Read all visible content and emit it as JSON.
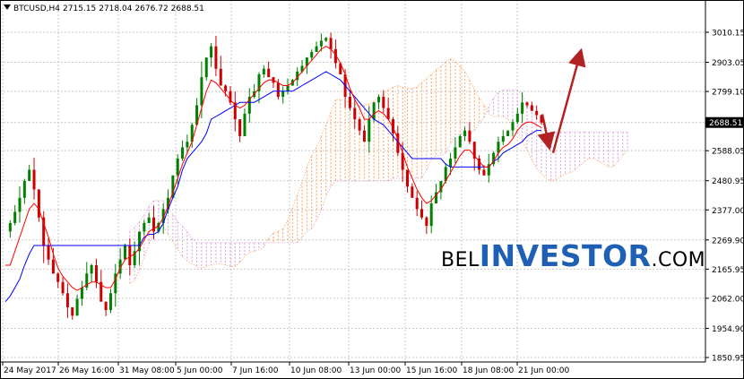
{
  "header": {
    "symbol": "BTCUSD,H4",
    "open": "2715.15",
    "high": "2718.04",
    "low": "2676.72",
    "close": "2688.51"
  },
  "watermark": {
    "part1": "BEL",
    "part2": "INVESTOR",
    "part3": ".COM"
  },
  "colors": {
    "bull": "#008000",
    "bear": "#cc0000",
    "tenkan": "#ff0000",
    "kijun": "#0000ff",
    "cloud_a": "#ffa060",
    "cloud_b": "#d8a0d8",
    "arrow": "#b22222",
    "watermark_blue": "#1f5fb4"
  },
  "chart_data": {
    "type": "candlestick",
    "title": "",
    "y_axis_ticks": [
      "3010.15",
      "2903.05",
      "2799.10",
      "2688.51",
      "2588.05",
      "2480.95",
      "2377.00",
      "2269.90",
      "2165.95",
      "2062.00",
      "1954.90",
      "1850.95"
    ],
    "current_price": "2688.51",
    "ylim": [
      1850.95,
      3060
    ],
    "x_axis_ticks": [
      "24 May 2017",
      "26 May 16:00",
      "31 May 08:00",
      "5 Jun 00:00",
      "7 Jun 16:00",
      "10 Jun 08:00",
      "13 Jun 00:00",
      "15 Jun 16:00",
      "18 Jun 08:00",
      "21 Jun 00:00"
    ],
    "indicators": [
      "Ichimoku Kinko Hyo"
    ],
    "forecast_arrows": [
      {
        "from": 2718,
        "to": 2580,
        "direction": "down"
      },
      {
        "from": 2580,
        "to": 2950,
        "direction": "up"
      }
    ],
    "price_path": [
      2300,
      2330,
      2370,
      2420,
      2480,
      2520,
      2450,
      2350,
      2250,
      2200,
      2150,
      2120,
      2080,
      2030,
      2000,
      2060,
      2100,
      2150,
      2180,
      2120,
      2050,
      2020,
      2080,
      2150,
      2200,
      2250,
      2180,
      2230,
      2300,
      2330,
      2350,
      2300,
      2330,
      2380,
      2420,
      2500,
      2560,
      2600,
      2620,
      2680,
      2750,
      2850,
      2920,
      2960,
      2880,
      2820,
      2800,
      2760,
      2700,
      2640,
      2720,
      2780,
      2800,
      2860,
      2880,
      2850,
      2830,
      2780,
      2800,
      2820,
      2840,
      2870,
      2890,
      2920,
      2940,
      2960,
      2980,
      2990,
      2950,
      2900,
      2860,
      2780,
      2740,
      2700,
      2660,
      2620,
      2700,
      2760,
      2780,
      2740,
      2700,
      2650,
      2580,
      2520,
      2460,
      2420,
      2380,
      2350,
      2320,
      2400,
      2440,
      2480,
      2530,
      2560,
      2600,
      2640,
      2660,
      2620,
      2560,
      2520,
      2500,
      2540,
      2580,
      2620,
      2640,
      2660,
      2690,
      2720,
      2760,
      2750,
      2730,
      2715,
      2688.51
    ],
    "tenkan_sen": [
      2180,
      2180,
      2230,
      2280,
      2330,
      2380,
      2400,
      2380,
      2330,
      2280,
      2220,
      2170,
      2140,
      2120,
      2100,
      2090,
      2100,
      2110,
      2120,
      2120,
      2110,
      2100,
      2100,
      2130,
      2170,
      2200,
      2210,
      2220,
      2240,
      2270,
      2300,
      2310,
      2320,
      2350,
      2390,
      2440,
      2490,
      2540,
      2580,
      2620,
      2680,
      2740,
      2800,
      2840,
      2830,
      2810,
      2790,
      2770,
      2750,
      2740,
      2750,
      2770,
      2790,
      2810,
      2830,
      2840,
      2840,
      2830,
      2820,
      2820,
      2830,
      2850,
      2870,
      2890,
      2910,
      2930,
      2950,
      2960,
      2950,
      2930,
      2900,
      2860,
      2810,
      2770,
      2740,
      2700,
      2700,
      2720,
      2730,
      2720,
      2700,
      2670,
      2630,
      2580,
      2530,
      2490,
      2450,
      2420,
      2400,
      2410,
      2430,
      2450,
      2480,
      2510,
      2540,
      2570,
      2590,
      2590,
      2570,
      2550,
      2530,
      2530,
      2550,
      2580,
      2600,
      2610,
      2630,
      2660,
      2680,
      2690,
      2690,
      2680,
      2670
    ],
    "kijun_sen": [
      2050,
      2070,
      2100,
      2130,
      2180,
      2220,
      2250,
      2250,
      2250,
      2250,
      2250,
      2250,
      2250,
      2250,
      2250,
      2250,
      2250,
      2250,
      2250,
      2250,
      2250,
      2250,
      2250,
      2250,
      2250,
      2250,
      2250,
      2250,
      2250,
      2280,
      2290,
      2290,
      2300,
      2330,
      2380,
      2420,
      2460,
      2520,
      2560,
      2580,
      2600,
      2620,
      2650,
      2700,
      2710,
      2720,
      2730,
      2740,
      2750,
      2760,
      2760,
      2760,
      2760,
      2770,
      2780,
      2790,
      2800,
      2800,
      2800,
      2800,
      2800,
      2810,
      2820,
      2830,
      2840,
      2850,
      2860,
      2870,
      2860,
      2850,
      2840,
      2820,
      2800,
      2780,
      2760,
      2740,
      2720,
      2700,
      2690,
      2680,
      2660,
      2640,
      2620,
      2600,
      2580,
      2560,
      2560,
      2560,
      2560,
      2560,
      2560,
      2560,
      2540,
      2530,
      2530,
      2530,
      2530,
      2530,
      2530,
      2530,
      2530,
      2530,
      2550,
      2560,
      2580,
      2590,
      2600,
      2610,
      2620,
      2640,
      2650,
      2660,
      2660
    ]
  }
}
